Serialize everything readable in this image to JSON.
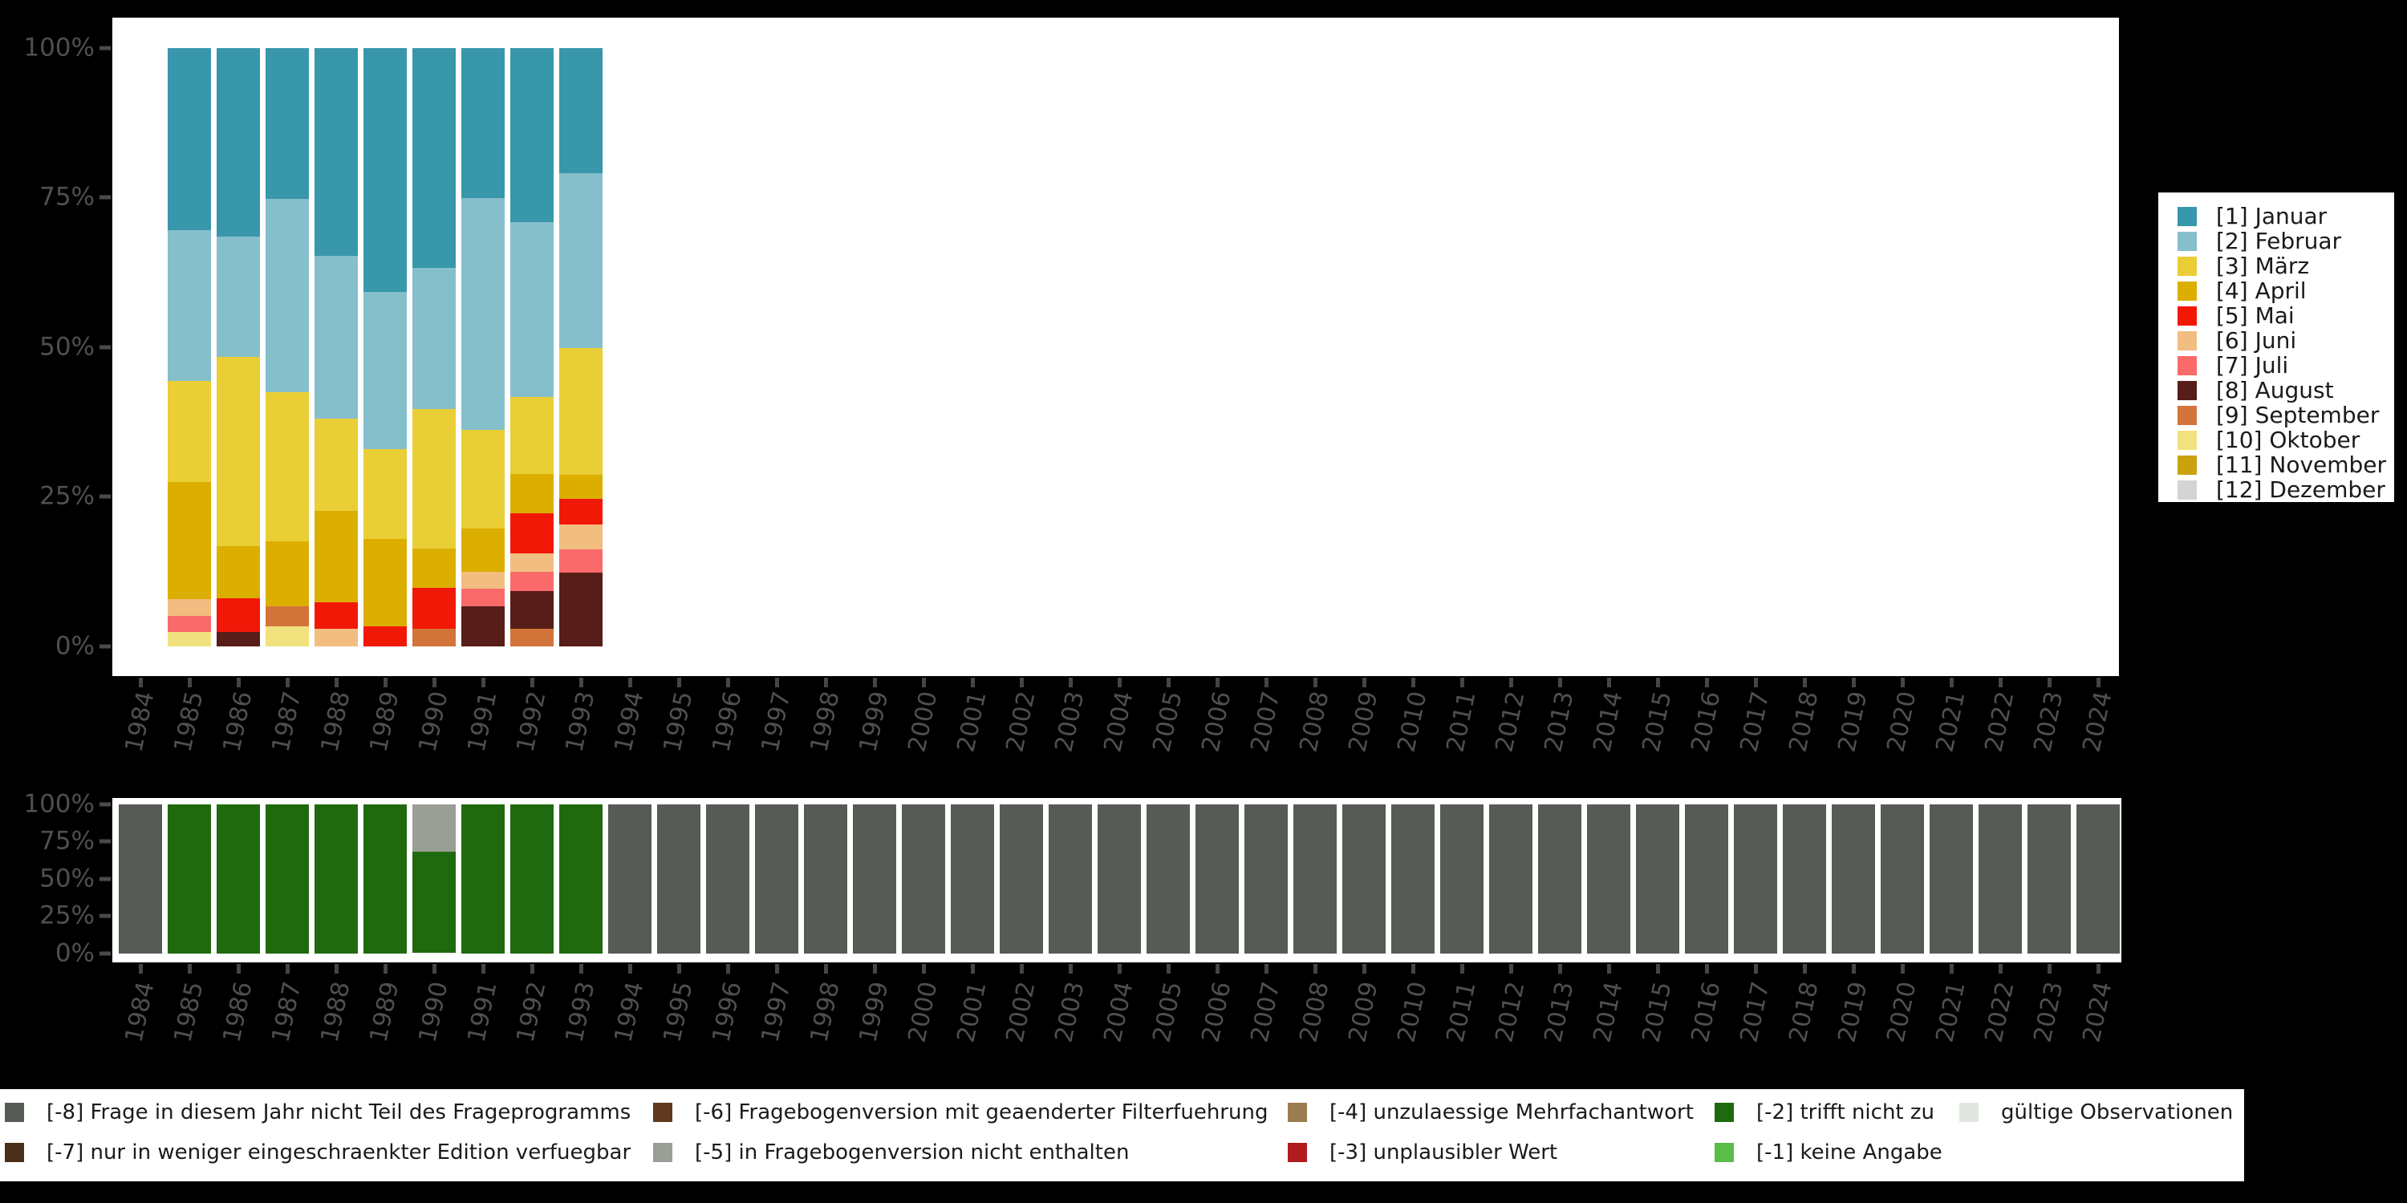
{
  "background_color": "#000000",
  "panel_color": "#ffffff",
  "axis": {
    "text_color": "#4f4f4f",
    "tick_color": "#4a4a4a",
    "y_tick_labels": [
      "100%",
      "75%",
      "50%",
      "25%",
      "0%"
    ]
  },
  "chart_data": [
    {
      "type": "bar",
      "stacked": true,
      "unit": "percent",
      "panel": "top",
      "title": "",
      "xlabel": "",
      "ylabel": "",
      "ylim": [
        0,
        100
      ],
      "grid": false,
      "categories": [
        1984,
        1985,
        1986,
        1987,
        1988,
        1989,
        1990,
        1991,
        1992,
        1993,
        1994,
        1995,
        1996,
        1997,
        1998,
        1999,
        2000,
        2001,
        2002,
        2003,
        2004,
        2005,
        2006,
        2007,
        2008,
        2009,
        2010,
        2011,
        2012,
        2013,
        2014,
        2015,
        2016,
        2017,
        2018,
        2019,
        2020,
        2021,
        2022,
        2023,
        2024
      ],
      "legend": {
        "position": "right",
        "entries": [
          {
            "key": "1",
            "label": "[1] Januar",
            "color": "#3897ab"
          },
          {
            "key": "2",
            "label": "[2] Februar",
            "color": "#85bfcc"
          },
          {
            "key": "3",
            "label": "[3] März",
            "color": "#e9ce35"
          },
          {
            "key": "4",
            "label": "[4] April",
            "color": "#dcae00"
          },
          {
            "key": "5",
            "label": "[5] Mai",
            "color": "#f21807"
          },
          {
            "key": "6",
            "label": "[6] Juni",
            "color": "#f2bd80"
          },
          {
            "key": "7",
            "label": "[7] Juli",
            "color": "#fa6a6a"
          },
          {
            "key": "8",
            "label": "[8] August",
            "color": "#571d18"
          },
          {
            "key": "9",
            "label": "[9] September",
            "color": "#d3743a"
          },
          {
            "key": "10",
            "label": "[10] Oktober",
            "color": "#f1e27d"
          },
          {
            "key": "11",
            "label": "[11] November",
            "color": "#c9a20e"
          },
          {
            "key": "12",
            "label": "[12] Dezember",
            "color": "#d4d4d4"
          }
        ]
      },
      "values": {
        "1985": [
          [
            "1",
            30.5
          ],
          [
            "2",
            25.2
          ],
          [
            "3",
            16.8
          ],
          [
            "4",
            19.6
          ],
          [
            "6",
            2.8
          ],
          [
            "7",
            2.7
          ],
          [
            "10",
            2.4
          ]
        ],
        "1986": [
          [
            "1",
            31.6
          ],
          [
            "2",
            20.1
          ],
          [
            "3",
            31.6
          ],
          [
            "4",
            8.7
          ],
          [
            "5",
            5.6
          ],
          [
            "8",
            2.4
          ]
        ],
        "1987": [
          [
            "1",
            25.2
          ],
          [
            "2",
            32.3
          ],
          [
            "3",
            24.9
          ],
          [
            "4",
            10.9
          ],
          [
            "9",
            3.4
          ],
          [
            "10",
            3.3
          ]
        ],
        "1988": [
          [
            "1",
            34.7
          ],
          [
            "2",
            27.2
          ],
          [
            "3",
            15.4
          ],
          [
            "4",
            15.3
          ],
          [
            "5",
            4.5
          ],
          [
            "6",
            2.9
          ]
        ],
        "1989": [
          [
            "1",
            40.8
          ],
          [
            "2",
            26.3
          ],
          [
            "3",
            14.9
          ],
          [
            "4",
            14.7
          ],
          [
            "5",
            3.3
          ]
        ],
        "1990": [
          [
            "1",
            36.8
          ],
          [
            "2",
            23.5
          ],
          [
            "3",
            23.4
          ],
          [
            "4",
            6.5
          ],
          [
            "5",
            6.9
          ],
          [
            "9",
            2.9
          ]
        ],
        "1991": [
          [
            "1",
            25.1
          ],
          [
            "2",
            38.7
          ],
          [
            "3",
            16.5
          ],
          [
            "4",
            7.3
          ],
          [
            "6",
            2.7
          ],
          [
            "7",
            3.0
          ],
          [
            "8",
            6.7
          ]
        ],
        "1992": [
          [
            "1",
            29.2
          ],
          [
            "2",
            29.2
          ],
          [
            "3",
            12.8
          ],
          [
            "4",
            6.6
          ],
          [
            "5",
            6.6
          ],
          [
            "6",
            3.2
          ],
          [
            "7",
            3.2
          ],
          [
            "8",
            6.3
          ],
          [
            "9",
            2.9
          ]
        ],
        "1993": [
          [
            "1",
            21.0
          ],
          [
            "2",
            29.2
          ],
          [
            "3",
            21.1
          ],
          [
            "4",
            4.0
          ],
          [
            "5",
            4.4
          ],
          [
            "6",
            4.1
          ],
          [
            "7",
            3.9
          ],
          [
            "8",
            12.3
          ]
        ]
      }
    },
    {
      "type": "bar",
      "stacked": true,
      "unit": "percent",
      "panel": "bottom",
      "title": "",
      "xlabel": "",
      "ylabel": "",
      "ylim": [
        0,
        100
      ],
      "grid": false,
      "categories": [
        1984,
        1985,
        1986,
        1987,
        1988,
        1989,
        1990,
        1991,
        1992,
        1993,
        1994,
        1995,
        1996,
        1997,
        1998,
        1999,
        2000,
        2001,
        2002,
        2003,
        2004,
        2005,
        2006,
        2007,
        2008,
        2009,
        2010,
        2011,
        2012,
        2013,
        2014,
        2015,
        2016,
        2017,
        2018,
        2019,
        2020,
        2021,
        2022,
        2023,
        2024
      ],
      "legend": {
        "position": "bottom",
        "entries": [
          {
            "key": "-8",
            "label": "[-8] Frage in diesem Jahr nicht Teil des Frageprogramms",
            "color": "#565b55"
          },
          {
            "key": "-7",
            "label": "[-7] nur in weniger eingeschraenkter Edition verfuegbar",
            "color": "#4a3018"
          },
          {
            "key": "-6",
            "label": "[-6] Fragebogenversion mit geaenderter Filterfuehrung",
            "color": "#5f3a1e"
          },
          {
            "key": "-5",
            "label": "[-5] in Fragebogenversion nicht enthalten",
            "color": "#999e96"
          },
          {
            "key": "-4",
            "label": "[-4] unzulaessige Mehrfachantwort",
            "color": "#9b7b51"
          },
          {
            "key": "-3",
            "label": "[-3] unplausibler Wert",
            "color": "#b01c1c"
          },
          {
            "key": "-2",
            "label": "[-2] trifft nicht zu",
            "color": "#1f6a0e"
          },
          {
            "key": "-1",
            "label": "[-1] keine Angabe",
            "color": "#59bd48"
          },
          {
            "key": "valid",
            "label": "gültige Observationen",
            "color": "#e2e6e0"
          }
        ],
        "columns": [
          [
            "-8",
            "-7"
          ],
          [
            "-6",
            "-5"
          ],
          [
            "-4",
            "-3"
          ],
          [
            "-2",
            "-1"
          ],
          [
            "valid"
          ]
        ]
      },
      "values": {
        "1984": [
          [
            "-8",
            100
          ]
        ],
        "1985": [
          [
            "-2",
            100
          ]
        ],
        "1986": [
          [
            "-2",
            100
          ]
        ],
        "1987": [
          [
            "-2",
            100
          ]
        ],
        "1988": [
          [
            "-2",
            100
          ]
        ],
        "1989": [
          [
            "-2",
            100
          ]
        ],
        "1990": [
          [
            "-5",
            32
          ],
          [
            "-2",
            68
          ]
        ],
        "1991": [
          [
            "-2",
            100
          ]
        ],
        "1992": [
          [
            "-2",
            100
          ]
        ],
        "1993": [
          [
            "-2",
            100
          ]
        ],
        "1994": [
          [
            "-8",
            100
          ]
        ],
        "1995": [
          [
            "-8",
            100
          ]
        ],
        "1996": [
          [
            "-8",
            100
          ]
        ],
        "1997": [
          [
            "-8",
            100
          ]
        ],
        "1998": [
          [
            "-8",
            100
          ]
        ],
        "1999": [
          [
            "-8",
            100
          ]
        ],
        "2000": [
          [
            "-8",
            100
          ]
        ],
        "2001": [
          [
            "-8",
            100
          ]
        ],
        "2002": [
          [
            "-8",
            100
          ]
        ],
        "2003": [
          [
            "-8",
            100
          ]
        ],
        "2004": [
          [
            "-8",
            100
          ]
        ],
        "2005": [
          [
            "-8",
            100
          ]
        ],
        "2006": [
          [
            "-8",
            100
          ]
        ],
        "2007": [
          [
            "-8",
            100
          ]
        ],
        "2008": [
          [
            "-8",
            100
          ]
        ],
        "2009": [
          [
            "-8",
            100
          ]
        ],
        "2010": [
          [
            "-8",
            100
          ]
        ],
        "2011": [
          [
            "-8",
            100
          ]
        ],
        "2012": [
          [
            "-8",
            100
          ]
        ],
        "2013": [
          [
            "-8",
            100
          ]
        ],
        "2014": [
          [
            "-8",
            100
          ]
        ],
        "2015": [
          [
            "-8",
            100
          ]
        ],
        "2016": [
          [
            "-8",
            100
          ]
        ],
        "2017": [
          [
            "-8",
            100
          ]
        ],
        "2018": [
          [
            "-8",
            100
          ]
        ],
        "2019": [
          [
            "-8",
            100
          ]
        ],
        "2020": [
          [
            "-8",
            100
          ]
        ],
        "2021": [
          [
            "-8",
            100
          ]
        ],
        "2022": [
          [
            "-8",
            100
          ]
        ],
        "2023": [
          [
            "-8",
            100
          ]
        ],
        "2024": [
          [
            "-8",
            100
          ]
        ]
      }
    }
  ]
}
